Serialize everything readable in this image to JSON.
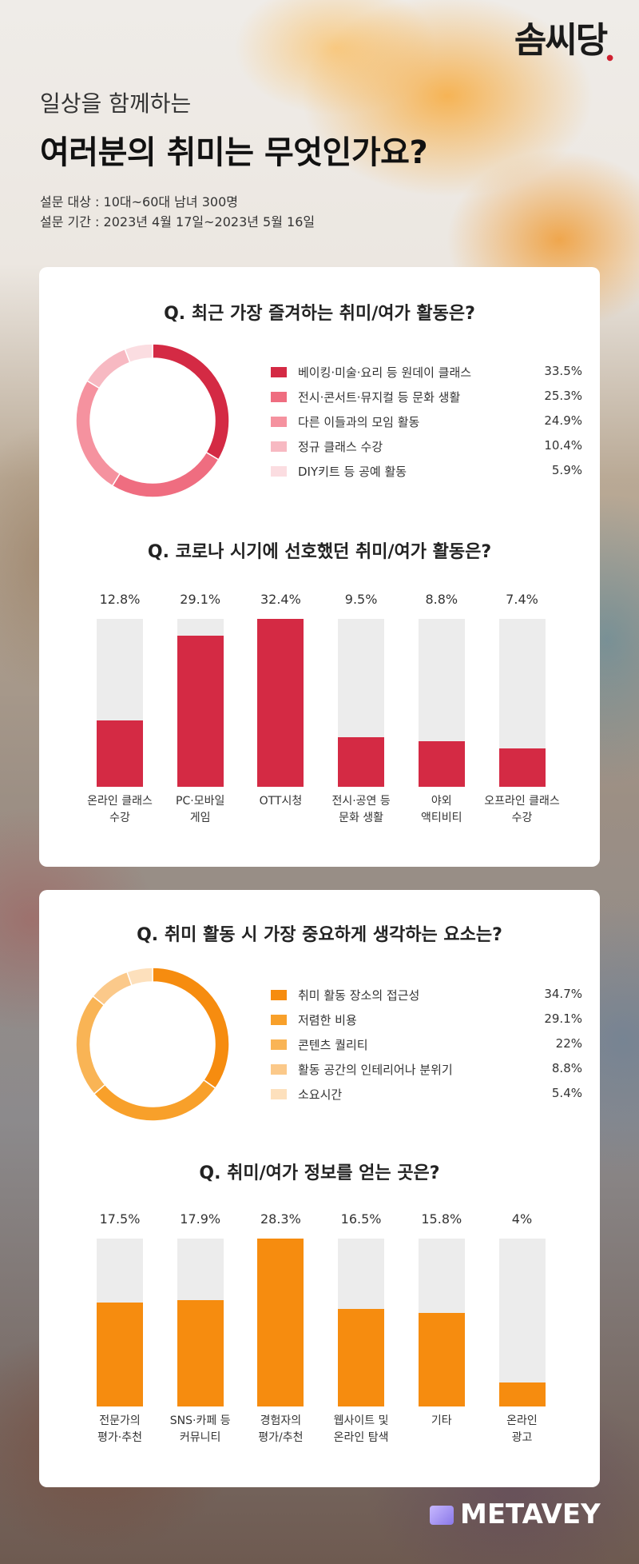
{
  "header": {
    "logo": "솜씨당",
    "subtitle": "일상을 함께하는",
    "title": "여러분의 취미는  무엇인가요?",
    "survey_target": "설문 대상 : 10대~60대 남녀 300명",
    "survey_period": "설문 기간 : 2023년 4월 17일~2023년 5월 16일"
  },
  "questions": {
    "q1": "Q. 최근 가장 즐겨하는 취미/여가 활동은?",
    "q2": "Q. 코로나 시기에 선호했던 취미/여가 활동은?",
    "q3": "Q. 취미 활동 시 가장 중요하게 생각하는 요소는?",
    "q4": "Q. 취미/여가 정보를 얻는 곳은?"
  },
  "footer": {
    "brand": "METAVEY"
  },
  "chart_data": [
    {
      "type": "pie",
      "title": "Q. 최근 가장 즐겨하는 취미/여가 활동은?",
      "categories": [
        "베이킹·미술·요리 등 원데이 클래스",
        "전시·콘서트·뮤지컬 등 문화 생활",
        "다른 이들과의 모임 활동",
        "정규 클래스 수강",
        "DIY키트 등 공예 활동"
      ],
      "values": [
        33.5,
        25.3,
        24.9,
        10.4,
        5.9
      ],
      "labels": [
        "33.5%",
        "25.3%",
        "24.9%",
        "10.4%",
        "5.9%"
      ],
      "colors": [
        "#d42a44",
        "#ef6d80",
        "#f5929f",
        "#f7b9c2",
        "#fbdde1"
      ],
      "legend": "right"
    },
    {
      "type": "bar",
      "title": "Q. 코로나 시기에 선호했던 취미/여가 활동은?",
      "categories": [
        "온라인 클래스\n수강",
        "PC·모바일\n게임",
        "OTT시청",
        "전시·공연 등\n문화 생활",
        "야외\n액티비티",
        "오프라인 클래스\n수강"
      ],
      "values": [
        12.8,
        29.1,
        32.4,
        9.5,
        8.8,
        7.4
      ],
      "labels": [
        "12.8%",
        "29.1%",
        "32.4%",
        "9.5%",
        "8.8%",
        "7.4%"
      ],
      "ylim": [
        0,
        32.4
      ],
      "color": "#d42a44"
    },
    {
      "type": "pie",
      "title": "Q. 취미 활동 시 가장 중요하게 생각하는 요소는?",
      "categories": [
        "취미 활동 장소의 접근성",
        "저렴한 비용",
        "콘텐츠 퀄리티",
        "활동 공간의 인테리어나 분위기",
        "소요시간"
      ],
      "values": [
        34.7,
        29.1,
        22,
        8.8,
        5.4
      ],
      "labels": [
        "34.7%",
        "29.1%",
        "22%",
        "8.8%",
        "5.4%"
      ],
      "colors": [
        "#f68c0f",
        "#f8a02a",
        "#f9b455",
        "#fbc98a",
        "#fde0bc"
      ],
      "legend": "right"
    },
    {
      "type": "bar",
      "title": "Q. 취미/여가 정보를 얻는 곳은?",
      "categories": [
        "전문가의\n평가·추천",
        "SNS·카페 등\n커뮤니티",
        "경험자의\n평가/추천",
        "웹사이트 및\n온라인 탐색",
        "기타",
        "온라인\n광고"
      ],
      "values": [
        17.5,
        17.9,
        28.3,
        16.5,
        15.8,
        4
      ],
      "labels": [
        "17.5%",
        "17.9%",
        "28.3%",
        "16.5%",
        "15.8%",
        "4%"
      ],
      "ylim": [
        0,
        28.3
      ],
      "color": "#f68c0f"
    }
  ]
}
